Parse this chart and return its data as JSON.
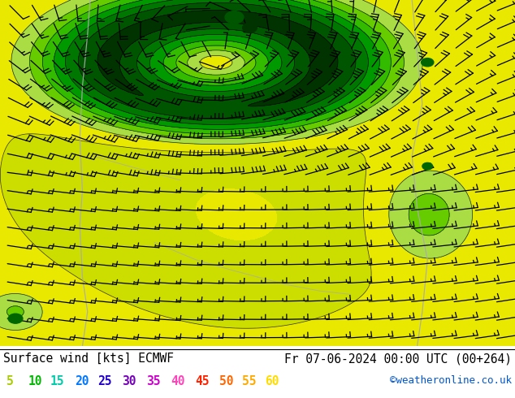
{
  "title_left": "Surface wind [kts] ECMWF",
  "title_right": "Fr 07-06-2024 00:00 UTC (00+264)",
  "watermark": "©weatheronline.co.uk",
  "legend_values": [
    "5",
    "10",
    "15",
    "20",
    "25",
    "30",
    "35",
    "40",
    "45",
    "50",
    "55",
    "60"
  ],
  "legend_colors": [
    "#aacc00",
    "#00bb00",
    "#00ccaa",
    "#0077ff",
    "#2200cc",
    "#7700bb",
    "#cc00cc",
    "#ff44bb",
    "#ff2200",
    "#ff6600",
    "#ffaa00",
    "#ffdd00"
  ],
  "bg_color": "#ffffff",
  "map_bg": "#e8e800",
  "fig_width": 6.34,
  "fig_height": 4.9,
  "dpi": 100,
  "title_fontsize": 10.5,
  "legend_fontsize": 10.5,
  "watermark_fontsize": 9
}
